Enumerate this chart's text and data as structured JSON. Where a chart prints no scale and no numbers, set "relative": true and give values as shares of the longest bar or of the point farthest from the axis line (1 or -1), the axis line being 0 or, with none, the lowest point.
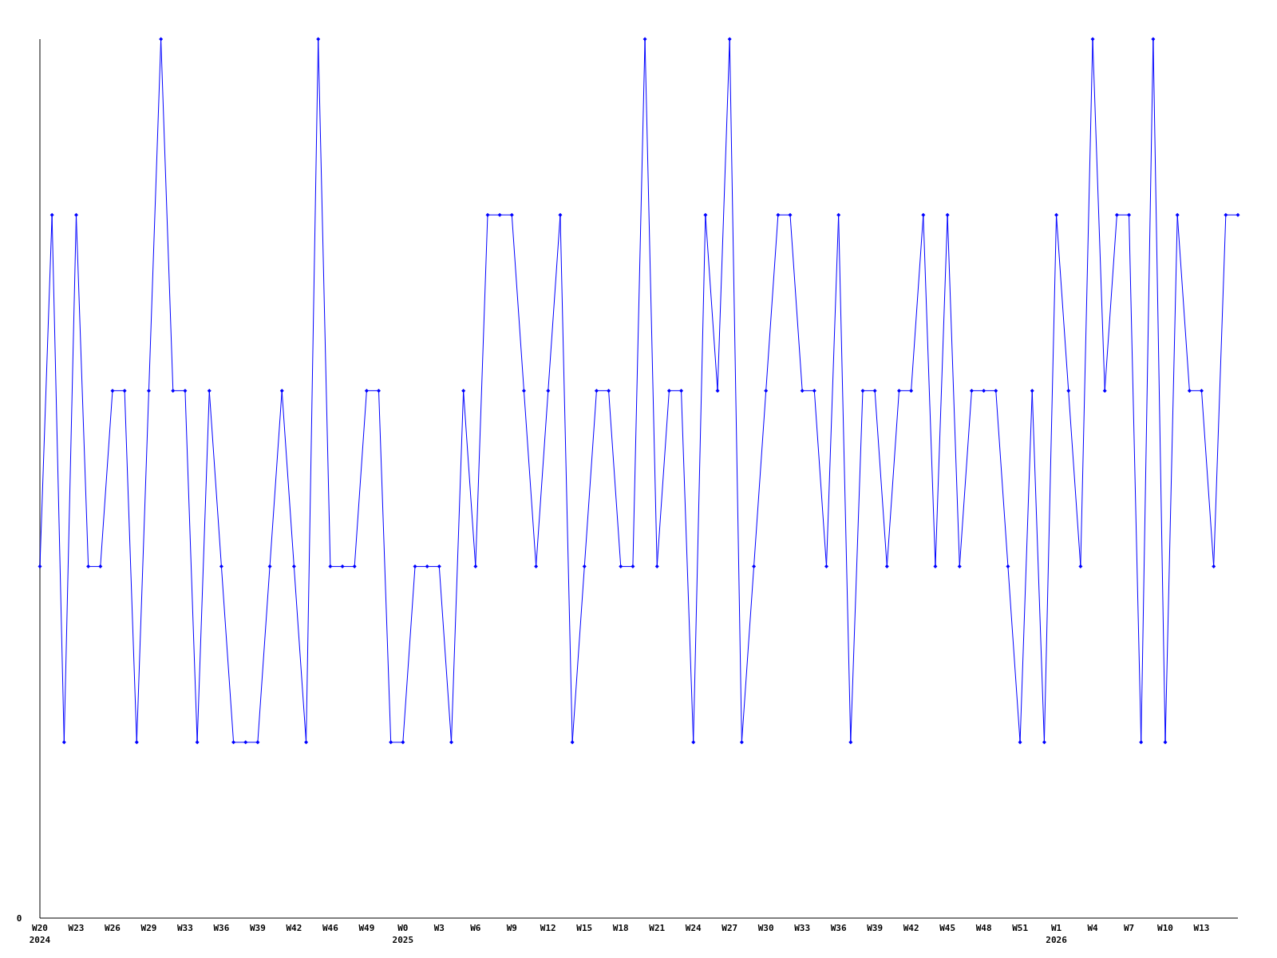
{
  "chart_data": {
    "type": "line",
    "relative": true,
    "marker": "diamond",
    "line_style": "solid",
    "categories": [
      "W20\n2024",
      null,
      null,
      "W23",
      null,
      null,
      "W26",
      null,
      null,
      "W29",
      null,
      null,
      "W33",
      null,
      null,
      "W36",
      null,
      null,
      "W39",
      null,
      null,
      "W42",
      null,
      null,
      "W46",
      null,
      null,
      "W49",
      null,
      null,
      "W0\n2025",
      null,
      null,
      "W3",
      null,
      null,
      "W6",
      null,
      null,
      "W9",
      null,
      null,
      "W12",
      null,
      null,
      "W15",
      null,
      null,
      "W18",
      null,
      null,
      "W21",
      null,
      null,
      "W24",
      null,
      null,
      "W27",
      null,
      null,
      "W30",
      null,
      null,
      "W33",
      null,
      null,
      "W36",
      null,
      null,
      "W39",
      null,
      null,
      "W42",
      null,
      null,
      "W45",
      null,
      null,
      "W48",
      null,
      null,
      "W51",
      null,
      null,
      "W1\n2026",
      null,
      null,
      "W4",
      null,
      null,
      "W7",
      null,
      null,
      "W10",
      null,
      null,
      "W13",
      null,
      null,
      null
    ],
    "series": [
      {
        "color": "#0000ff",
        "values": [
          0.4,
          0.8,
          0.2,
          0.8,
          0.4,
          0.4,
          0.6,
          0.6,
          0.2,
          0.6,
          1,
          0.6,
          0.6,
          0.2,
          0.6,
          0.4,
          0.2,
          0.2,
          0.2,
          0.4,
          0.6,
          0.4,
          0.2,
          1,
          0.4,
          0.4,
          0.4,
          0.6,
          0.6,
          0.2,
          0.2,
          0.4,
          0.4,
          0.4,
          0.2,
          0.6,
          0.4,
          0.8,
          0.8,
          0.8,
          0.6,
          0.4,
          0.6,
          0.8,
          0.2,
          0.4,
          0.6,
          0.6,
          0.4,
          0.4,
          1,
          0.4,
          0.6,
          0.6,
          0.2,
          0.8,
          0.6,
          1,
          0.2,
          0.4,
          0.6,
          0.8,
          0.8,
          0.6,
          0.6,
          0.4,
          0.8,
          0.2,
          0.6,
          0.6,
          0.4,
          0.6,
          0.6,
          0.8,
          0.4,
          0.8,
          0.4,
          0.6,
          0.6,
          0.6,
          0.4,
          0.2,
          0.6,
          0.2,
          0.8,
          0.6,
          0.4,
          1,
          0.6,
          0.8,
          0.8,
          0.2,
          1,
          0.2,
          0.8,
          0.6,
          0.6,
          0.4,
          0.8,
          0.8
        ]
      }
    ],
    "annotations": [
      "0"
    ]
  }
}
